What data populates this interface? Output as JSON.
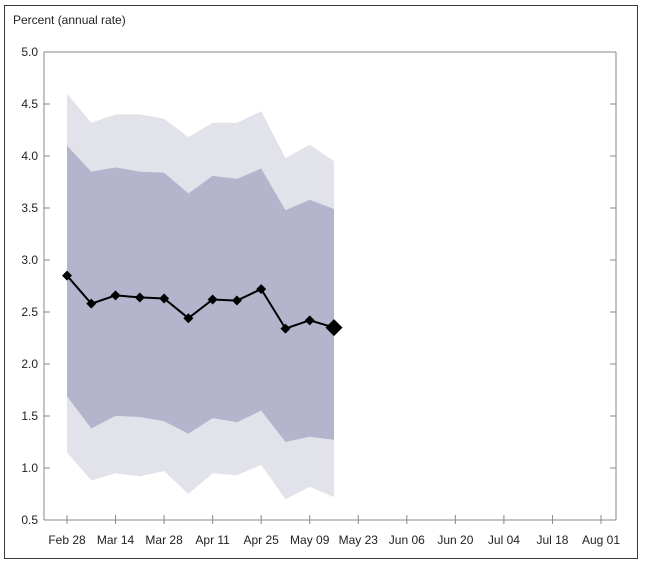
{
  "chart_data": {
    "type": "line",
    "unit_label": "Percent (annual rate)",
    "ylim": [
      0.5,
      5.0
    ],
    "y_ticks": [
      "5.0",
      "4.5",
      "4.0",
      "3.5",
      "3.0",
      "2.5",
      "2.0",
      "1.5",
      "1.0",
      "0.5"
    ],
    "x_ticks": [
      "Feb 28",
      "Mar 14",
      "Mar 28",
      "Apr 11",
      "Apr 25",
      "May 09",
      "May 23",
      "Jun 06",
      "Jun 20",
      "Jul 04",
      "Jul 18",
      "Aug 01"
    ],
    "x_tick_days": [
      0,
      14,
      28,
      42,
      56,
      70,
      84,
      98,
      112,
      126,
      140,
      154
    ],
    "grid": false,
    "series": [
      {
        "days": [
          0,
          7,
          14,
          21,
          28,
          35,
          42,
          49,
          56,
          63,
          70,
          77
        ],
        "values": [
          2.85,
          2.58,
          2.66,
          2.64,
          2.63,
          2.44,
          2.62,
          2.61,
          2.72,
          2.34,
          2.42,
          2.35
        ]
      }
    ],
    "bands": {
      "outer_upper": [
        4.6,
        4.32,
        4.4,
        4.4,
        4.36,
        4.18,
        4.32,
        4.32,
        4.43,
        3.98,
        4.11,
        3.95
      ],
      "outer_lower": [
        1.15,
        0.88,
        0.95,
        0.92,
        0.97,
        0.75,
        0.95,
        0.93,
        1.03,
        0.7,
        0.82,
        0.72
      ],
      "inner_upper": [
        4.1,
        3.85,
        3.89,
        3.85,
        3.84,
        3.64,
        3.81,
        3.78,
        3.88,
        3.48,
        3.58,
        3.49
      ],
      "inner_lower": [
        1.69,
        1.38,
        1.5,
        1.49,
        1.45,
        1.33,
        1.48,
        1.44,
        1.55,
        1.25,
        1.3,
        1.27
      ]
    },
    "colors": {
      "outer_band": "#e2e2eb",
      "inner_band": "#b4b4cc",
      "line": "#000000",
      "axis": "#888888"
    }
  }
}
